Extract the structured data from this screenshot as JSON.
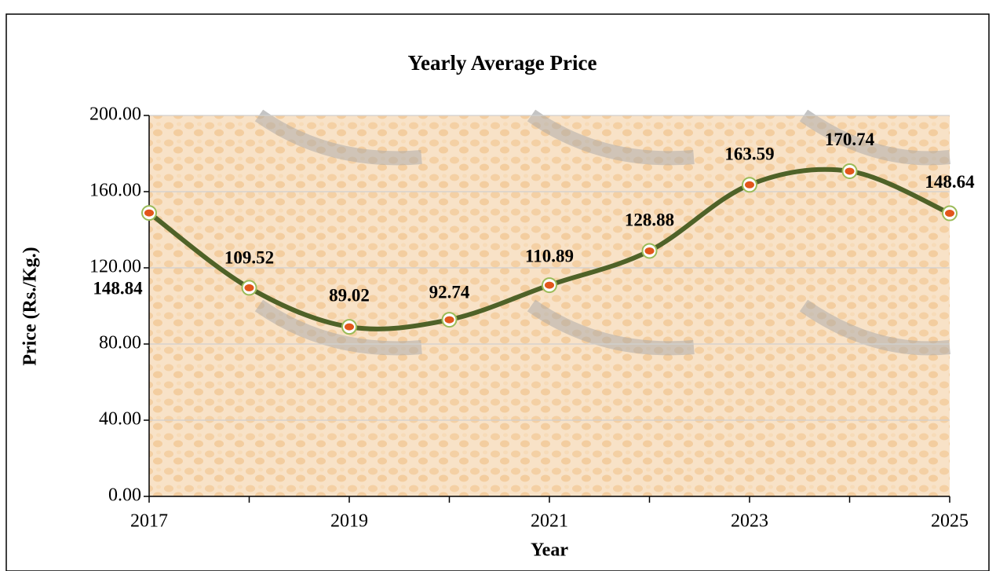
{
  "chart_data": {
    "type": "line",
    "title": "Yearly Average Price",
    "x_label": "Year",
    "y_label": "Price (Rs./Kg.)",
    "x": [
      2017,
      2018,
      2019,
      2020,
      2021,
      2022,
      2023,
      2024,
      2025
    ],
    "series": [
      {
        "name": "Yearly Average Price",
        "color": "#4f6228",
        "values": [
          148.84,
          109.52,
          89.02,
          92.74,
          110.89,
          128.88,
          163.59,
          170.74,
          148.64
        ]
      }
    ],
    "xlim": [
      2017,
      2025
    ],
    "xticks": [
      2017,
      2019,
      2021,
      2023,
      2025
    ],
    "xticks_minor": [
      2018,
      2020,
      2022,
      2024
    ],
    "ylim": [
      0,
      200
    ],
    "yticks": [
      {
        "value": 0,
        "label": "0.00"
      },
      {
        "value": 40,
        "label": "40.00"
      },
      {
        "value": 80,
        "label": "80.00"
      },
      {
        "value": 120,
        "label": "120.00"
      },
      {
        "value": 160,
        "label": "160.00"
      },
      {
        "value": 200,
        "label": "200.00"
      }
    ],
    "grid": true,
    "smooth": true
  }
}
